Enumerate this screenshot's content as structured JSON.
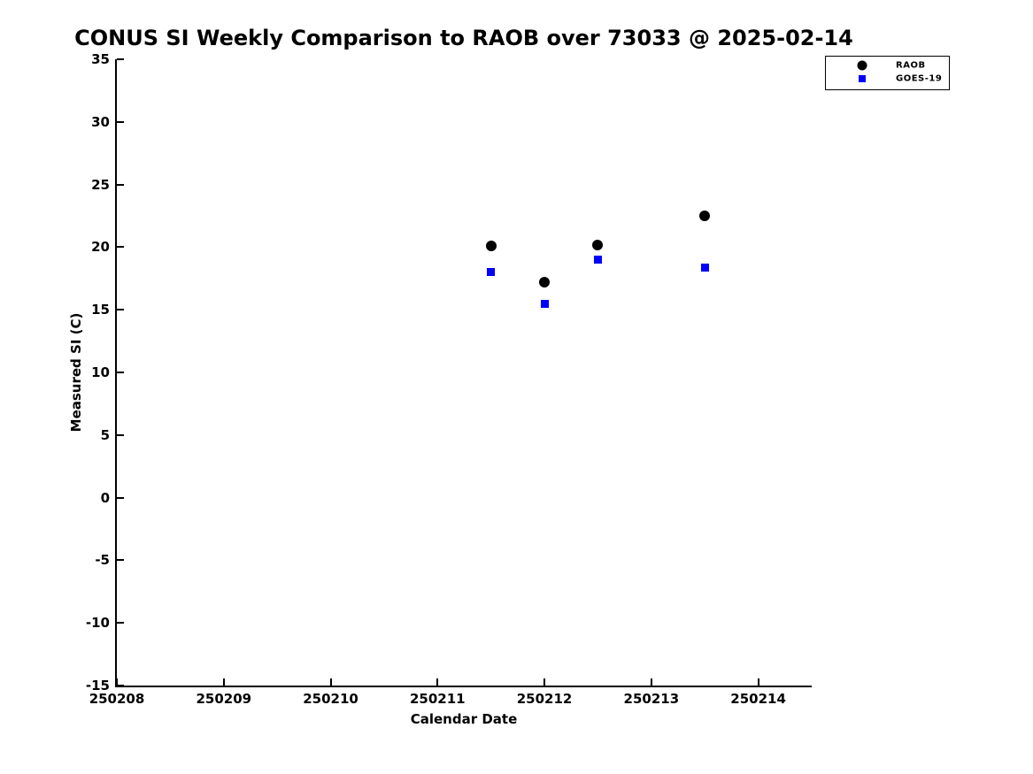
{
  "chart_data": {
    "type": "scatter",
    "title": "CONUS SI Weekly Comparison to RAOB over 73033 @ 2025-02-14",
    "xlabel": "Calendar Date",
    "ylabel": "Measured SI (C)",
    "x_tick_labels": [
      "250208",
      "250209",
      "250210",
      "250211",
      "250212",
      "250213",
      "250214"
    ],
    "y_tick_labels": [
      "35",
      "30",
      "25",
      "20",
      "15",
      "10",
      "5",
      "0",
      "-5",
      "-10",
      "-15"
    ],
    "y_tick_values": [
      35,
      30,
      25,
      20,
      15,
      10,
      5,
      0,
      -5,
      -10,
      -15
    ],
    "ylim": [
      -15,
      35
    ],
    "x_domain_days": [
      0,
      6.5
    ],
    "grid": false,
    "legend_position": "top-right",
    "series": [
      {
        "name": "RAOB",
        "marker": "circle",
        "color": "#000000",
        "x": [
          250211.5,
          250212.0,
          250212.5,
          250213.5
        ],
        "x_day_offset": [
          3.5,
          4.0,
          4.5,
          5.5
        ],
        "values": [
          20.1,
          17.2,
          20.2,
          22.5
        ]
      },
      {
        "name": "GOES-19",
        "marker": "square",
        "color": "#0000ff",
        "x": [
          250211.5,
          250212.0,
          250212.5,
          250213.5
        ],
        "x_day_offset": [
          3.5,
          4.0,
          4.5,
          5.5
        ],
        "values": [
          18.0,
          15.5,
          19.0,
          18.4
        ]
      }
    ],
    "axis_color": "#000000",
    "background_color": "#ffffff"
  }
}
